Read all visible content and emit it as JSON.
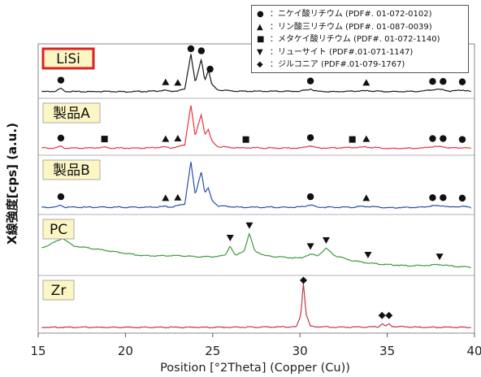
{
  "chart_data": {
    "type": "line",
    "xlabel": "Position [°2Theta] (Copper (Cu))",
    "ylabel": "X線強度[cps]  (a.u.)",
    "xlim": [
      15,
      40
    ],
    "xticks": [
      "15",
      "20",
      "25",
      "30",
      "35",
      "40"
    ],
    "legend": [
      {
        "marker": "circle",
        "text": "：ニケイ酸リチウム (PDF#. 01-072-0102)"
      },
      {
        "marker": "triangle-up",
        "text": "：リン酸三リチウム (PDF#. 01-087-0039)"
      },
      {
        "marker": "square",
        "text": "：メタケイ酸リチウム (PDF#. 01-072-1140)"
      },
      {
        "marker": "triangle-down",
        "text": "：リューサイト (PDF#.01-071-1147)"
      },
      {
        "marker": "diamond",
        "text": "：ジルコニア (PDF#.01-079-1767)"
      }
    ],
    "series": [
      {
        "name": "LiSi",
        "color": "#1a1a1a",
        "label_boxed_red": true,
        "points": [
          [
            15.2,
            0.04
          ],
          [
            16.0,
            0.05
          ],
          [
            16.3,
            0.12
          ],
          [
            16.5,
            0.05
          ],
          [
            17.5,
            0.04
          ],
          [
            19.0,
            0.05
          ],
          [
            20.0,
            0.04
          ],
          [
            21.5,
            0.05
          ],
          [
            22.3,
            0.07
          ],
          [
            22.6,
            0.05
          ],
          [
            23.0,
            0.06
          ],
          [
            23.4,
            0.1
          ],
          [
            23.75,
            0.92
          ],
          [
            24.0,
            0.25
          ],
          [
            24.2,
            0.55
          ],
          [
            24.35,
            0.8
          ],
          [
            24.55,
            0.3
          ],
          [
            24.75,
            0.55
          ],
          [
            24.95,
            0.2
          ],
          [
            25.3,
            0.08
          ],
          [
            26.5,
            0.05
          ],
          [
            28.0,
            0.05
          ],
          [
            30.0,
            0.05
          ],
          [
            30.6,
            0.1
          ],
          [
            31.0,
            0.05
          ],
          [
            32.0,
            0.04
          ],
          [
            33.8,
            0.06
          ],
          [
            35.0,
            0.04
          ],
          [
            37.0,
            0.05
          ],
          [
            37.6,
            0.09
          ],
          [
            38.2,
            0.09
          ],
          [
            38.6,
            0.05
          ],
          [
            39.3,
            0.08
          ],
          [
            39.8,
            0.04
          ]
        ],
        "peaks": [
          {
            "x": 16.3,
            "marker": "circle"
          },
          {
            "x": 22.3,
            "marker": "triangle-up"
          },
          {
            "x": 23.0,
            "marker": "triangle-up"
          },
          {
            "x": 23.75,
            "marker": "circle"
          },
          {
            "x": 24.35,
            "marker": "circle"
          },
          {
            "x": 24.85,
            "marker": "circle"
          },
          {
            "x": 30.6,
            "marker": "circle"
          },
          {
            "x": 33.8,
            "marker": "triangle-up"
          },
          {
            "x": 37.6,
            "marker": "circle"
          },
          {
            "x": 38.2,
            "marker": "circle"
          },
          {
            "x": 39.3,
            "marker": "circle"
          }
        ]
      },
      {
        "name": "製品A",
        "color": "#e8343f",
        "points": [
          [
            15.2,
            0.05
          ],
          [
            16.0,
            0.05
          ],
          [
            16.3,
            0.09
          ],
          [
            16.5,
            0.05
          ],
          [
            18.0,
            0.05
          ],
          [
            18.8,
            0.07
          ],
          [
            19.2,
            0.05
          ],
          [
            21.0,
            0.05
          ],
          [
            22.3,
            0.07
          ],
          [
            22.6,
            0.05
          ],
          [
            23.0,
            0.08
          ],
          [
            23.4,
            0.12
          ],
          [
            23.75,
            1.0
          ],
          [
            24.0,
            0.3
          ],
          [
            24.2,
            0.6
          ],
          [
            24.35,
            0.8
          ],
          [
            24.55,
            0.35
          ],
          [
            24.75,
            0.45
          ],
          [
            24.95,
            0.2
          ],
          [
            25.3,
            0.08
          ],
          [
            26.5,
            0.05
          ],
          [
            27.0,
            0.06
          ],
          [
            28.0,
            0.05
          ],
          [
            30.0,
            0.05
          ],
          [
            30.6,
            0.1
          ],
          [
            31.0,
            0.05
          ],
          [
            33.0,
            0.06
          ],
          [
            33.8,
            0.07
          ],
          [
            35.0,
            0.04
          ],
          [
            37.0,
            0.05
          ],
          [
            37.6,
            0.08
          ],
          [
            38.2,
            0.08
          ],
          [
            38.6,
            0.05
          ],
          [
            39.3,
            0.06
          ],
          [
            39.8,
            0.04
          ]
        ],
        "peaks": [
          {
            "x": 16.3,
            "marker": "circle"
          },
          {
            "x": 18.8,
            "marker": "square"
          },
          {
            "x": 22.3,
            "marker": "triangle-up"
          },
          {
            "x": 23.0,
            "marker": "triangle-up"
          },
          {
            "x": 26.9,
            "marker": "square"
          },
          {
            "x": 30.6,
            "marker": "circle"
          },
          {
            "x": 33.0,
            "marker": "square"
          },
          {
            "x": 33.8,
            "marker": "triangle-up"
          },
          {
            "x": 37.6,
            "marker": "circle"
          },
          {
            "x": 38.2,
            "marker": "circle"
          },
          {
            "x": 39.3,
            "marker": "circle"
          }
        ]
      },
      {
        "name": "製品B",
        "color": "#2a4fa8",
        "points": [
          [
            15.2,
            0.05
          ],
          [
            16.0,
            0.05
          ],
          [
            16.3,
            0.1
          ],
          [
            16.5,
            0.05
          ],
          [
            18.0,
            0.05
          ],
          [
            20.0,
            0.05
          ],
          [
            21.5,
            0.05
          ],
          [
            22.3,
            0.07
          ],
          [
            22.6,
            0.05
          ],
          [
            23.0,
            0.08
          ],
          [
            23.4,
            0.12
          ],
          [
            23.75,
            1.0
          ],
          [
            24.0,
            0.3
          ],
          [
            24.2,
            0.6
          ],
          [
            24.35,
            0.8
          ],
          [
            24.55,
            0.35
          ],
          [
            24.75,
            0.45
          ],
          [
            24.95,
            0.2
          ],
          [
            25.3,
            0.08
          ],
          [
            26.5,
            0.05
          ],
          [
            28.0,
            0.05
          ],
          [
            30.0,
            0.05
          ],
          [
            30.6,
            0.1
          ],
          [
            31.0,
            0.05
          ],
          [
            33.0,
            0.05
          ],
          [
            33.8,
            0.07
          ],
          [
            35.0,
            0.04
          ],
          [
            37.0,
            0.05
          ],
          [
            37.6,
            0.08
          ],
          [
            38.2,
            0.08
          ],
          [
            38.6,
            0.05
          ],
          [
            39.3,
            0.07
          ],
          [
            39.8,
            0.04
          ]
        ],
        "peaks": [
          {
            "x": 16.3,
            "marker": "circle"
          },
          {
            "x": 22.3,
            "marker": "triangle-up"
          },
          {
            "x": 23.0,
            "marker": "triangle-up"
          },
          {
            "x": 30.6,
            "marker": "circle"
          },
          {
            "x": 33.8,
            "marker": "triangle-up"
          },
          {
            "x": 37.6,
            "marker": "circle"
          },
          {
            "x": 38.2,
            "marker": "circle"
          },
          {
            "x": 39.3,
            "marker": "circle"
          }
        ]
      },
      {
        "name": "PC",
        "color": "#3e9a3e",
        "points": [
          [
            15.2,
            0.45
          ],
          [
            15.8,
            0.55
          ],
          [
            16.4,
            0.65
          ],
          [
            17.0,
            0.5
          ],
          [
            18.0,
            0.45
          ],
          [
            19.0,
            0.4
          ],
          [
            20.0,
            0.35
          ],
          [
            21.0,
            0.3
          ],
          [
            22.0,
            0.3
          ],
          [
            23.0,
            0.3
          ],
          [
            24.0,
            0.28
          ],
          [
            25.0,
            0.28
          ],
          [
            25.7,
            0.3
          ],
          [
            26.0,
            0.5
          ],
          [
            26.3,
            0.3
          ],
          [
            26.8,
            0.4
          ],
          [
            27.1,
            0.75
          ],
          [
            27.4,
            0.4
          ],
          [
            28.0,
            0.3
          ],
          [
            29.0,
            0.27
          ],
          [
            30.0,
            0.25
          ],
          [
            30.6,
            0.33
          ],
          [
            31.0,
            0.3
          ],
          [
            31.5,
            0.45
          ],
          [
            32.0,
            0.3
          ],
          [
            33.0,
            0.2
          ],
          [
            34.0,
            0.15
          ],
          [
            35.0,
            0.12
          ],
          [
            36.0,
            0.1
          ],
          [
            37.0,
            0.1
          ],
          [
            38.0,
            0.12
          ],
          [
            39.0,
            0.08
          ],
          [
            39.8,
            0.07
          ]
        ],
        "peaks": [
          {
            "x": 16.4,
            "marker": "triangle-down"
          },
          {
            "x": 26.0,
            "marker": "triangle-down"
          },
          {
            "x": 27.1,
            "marker": "triangle-down"
          },
          {
            "x": 30.6,
            "marker": "triangle-down"
          },
          {
            "x": 31.5,
            "marker": "triangle-down"
          },
          {
            "x": 33.9,
            "marker": "triangle-down"
          },
          {
            "x": 38.0,
            "marker": "triangle-down"
          }
        ]
      },
      {
        "name": "Zr",
        "color": "#c0394a",
        "points": [
          [
            15.2,
            0.02
          ],
          [
            20.0,
            0.02
          ],
          [
            25.0,
            0.02
          ],
          [
            29.8,
            0.03
          ],
          [
            30.05,
            0.3
          ],
          [
            30.2,
            1.0
          ],
          [
            30.35,
            0.3
          ],
          [
            30.6,
            0.04
          ],
          [
            32.0,
            0.02
          ],
          [
            34.5,
            0.03
          ],
          [
            34.7,
            0.1
          ],
          [
            34.9,
            0.04
          ],
          [
            35.1,
            0.1
          ],
          [
            35.3,
            0.04
          ],
          [
            37.0,
            0.02
          ],
          [
            39.8,
            0.02
          ]
        ],
        "peaks": [
          {
            "x": 30.2,
            "marker": "diamond"
          },
          {
            "x": 34.7,
            "marker": "diamond"
          },
          {
            "x": 35.1,
            "marker": "diamond"
          }
        ]
      }
    ]
  }
}
